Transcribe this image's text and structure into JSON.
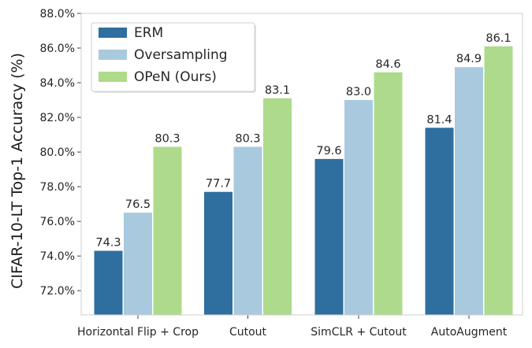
{
  "chart_data": {
    "type": "bar",
    "title": "",
    "xlabel": "",
    "ylabel": "CIFAR-10-LT Top-1 Accuracy (%)",
    "ylim": [
      70.6,
      88.0
    ],
    "yticks": [
      72,
      74,
      76,
      78,
      80,
      82,
      84,
      86,
      88
    ],
    "ytick_labels": [
      "72.0%",
      "74.0%",
      "76.0%",
      "78.0%",
      "80.0%",
      "82.0%",
      "84.0%",
      "86.0%",
      "88.0%"
    ],
    "categories": [
      "Horizontal Flip + Crop",
      "Cutout",
      "SimCLR + Cutout",
      "AutoAugment"
    ],
    "series": [
      {
        "name": "ERM",
        "color": "#2f6fa0",
        "values": [
          74.3,
          77.7,
          79.6,
          81.4
        ],
        "labels": [
          "74.3",
          "77.7",
          "79.6",
          "81.4"
        ]
      },
      {
        "name": "Oversampling",
        "color": "#a9c9de",
        "values": [
          76.5,
          80.3,
          83.0,
          84.9
        ],
        "labels": [
          "76.5",
          "80.3",
          "83.0",
          "84.9"
        ]
      },
      {
        "name": "OPeN (Ours)",
        "color": "#addb8b",
        "values": [
          80.3,
          83.1,
          84.6,
          86.1
        ],
        "labels": [
          "80.3",
          "83.1",
          "84.6",
          "86.1"
        ]
      }
    ],
    "legend_position": "top-left",
    "grid": false
  }
}
